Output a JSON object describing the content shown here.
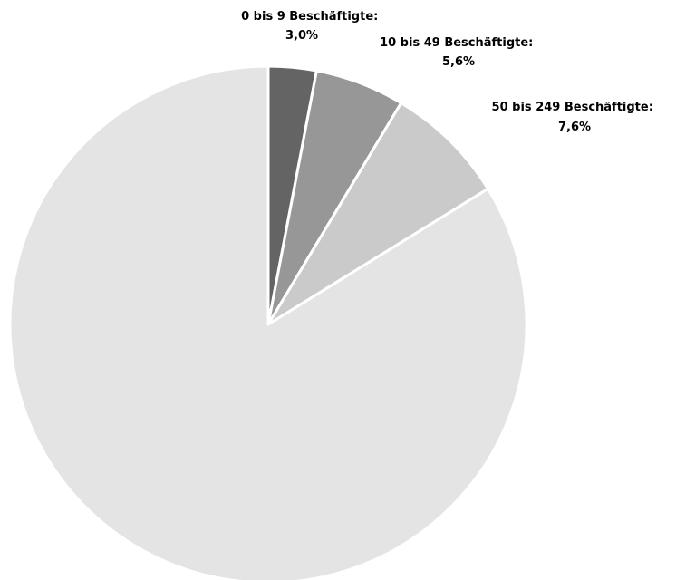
{
  "chart_data": {
    "type": "pie",
    "categories": [
      "0 bis 9 Beschäftigte:",
      "10 bis 49 Beschäftigte:",
      "50 bis 249 Beschäftigte:",
      ""
    ],
    "values": [
      3.0,
      5.6,
      7.6,
      83.8
    ],
    "value_labels": [
      "3,0%",
      "5,6%",
      "7,6%",
      ""
    ],
    "start": "12 o'clock",
    "direction": "clockwise",
    "colors": [
      "#646464",
      "#979797",
      "#cacaca",
      "#e4e4e4"
    ],
    "slice_border": "#ffffff",
    "legend": "none"
  }
}
